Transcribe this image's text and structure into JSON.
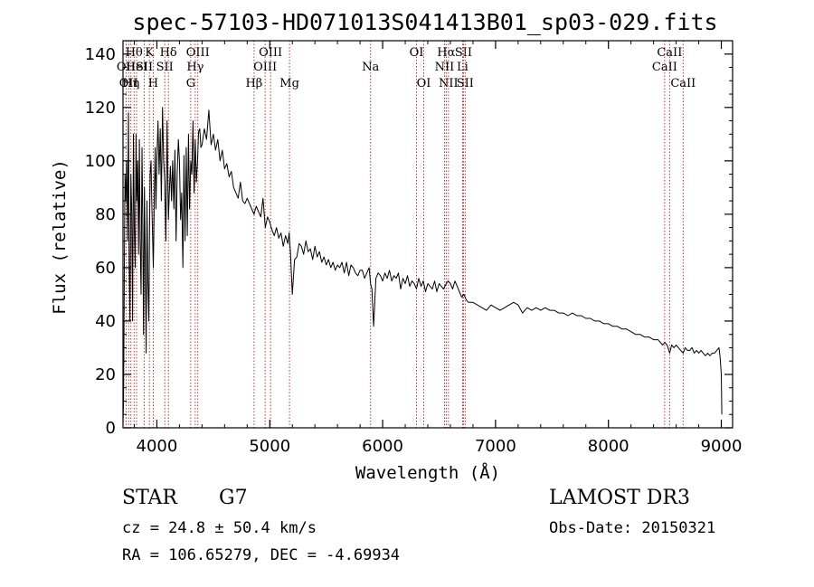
{
  "chart_data": {
    "type": "line",
    "title": "spec-57103-HD071013S041413B01_sp03-029.fits",
    "xlabel": "Wavelength (Å)",
    "ylabel": "Flux (relative)",
    "xlim": [
      3700,
      9100
    ],
    "ylim": [
      0,
      145
    ],
    "xticks": [
      4000,
      5000,
      6000,
      7000,
      8000,
      9000
    ],
    "yticks": [
      0,
      20,
      40,
      60,
      80,
      100,
      120,
      140
    ],
    "series": [
      {
        "name": "flux",
        "x": [
          3700,
          3705,
          3712,
          3718,
          3725,
          3732,
          3740,
          3748,
          3755,
          3762,
          3770,
          3778,
          3785,
          3792,
          3800,
          3808,
          3815,
          3822,
          3830,
          3838,
          3845,
          3852,
          3860,
          3868,
          3875,
          3882,
          3890,
          3898,
          3905,
          3912,
          3920,
          3928,
          3934,
          3940,
          3948,
          3955,
          3962,
          3968,
          3972,
          3978,
          3985,
          3992,
          4000,
          4010,
          4020,
          4030,
          4040,
          4050,
          4060,
          4070,
          4080,
          4090,
          4102,
          4110,
          4120,
          4130,
          4140,
          4150,
          4160,
          4170,
          4180,
          4190,
          4200,
          4210,
          4220,
          4230,
          4240,
          4250,
          4260,
          4270,
          4280,
          4290,
          4300,
          4310,
          4320,
          4330,
          4340,
          4350,
          4360,
          4370,
          4380,
          4390,
          4400,
          4420,
          4440,
          4460,
          4480,
          4500,
          4520,
          4540,
          4560,
          4580,
          4600,
          4620,
          4640,
          4660,
          4680,
          4700,
          4720,
          4740,
          4760,
          4780,
          4800,
          4820,
          4840,
          4861,
          4880,
          4900,
          4920,
          4940,
          4960,
          4980,
          5000,
          5020,
          5040,
          5060,
          5080,
          5100,
          5120,
          5140,
          5160,
          5172,
          5183,
          5200,
          5220,
          5240,
          5260,
          5280,
          5300,
          5320,
          5340,
          5360,
          5380,
          5400,
          5420,
          5440,
          5460,
          5480,
          5500,
          5520,
          5540,
          5560,
          5580,
          5600,
          5620,
          5640,
          5660,
          5680,
          5700,
          5720,
          5740,
          5760,
          5780,
          5800,
          5820,
          5840,
          5860,
          5880,
          5893,
          5905,
          5920,
          5940,
          5960,
          5980,
          6000,
          6020,
          6040,
          6060,
          6080,
          6100,
          6120,
          6140,
          6160,
          6180,
          6200,
          6220,
          6240,
          6260,
          6280,
          6300,
          6320,
          6340,
          6360,
          6380,
          6400,
          6420,
          6440,
          6460,
          6480,
          6500,
          6520,
          6540,
          6563,
          6580,
          6600,
          6620,
          6640,
          6660,
          6680,
          6700,
          6720,
          6740,
          6760,
          6800,
          6840,
          6880,
          6920,
          6960,
          7000,
          7040,
          7080,
          7120,
          7160,
          7200,
          7240,
          7280,
          7320,
          7360,
          7400,
          7440,
          7480,
          7520,
          7560,
          7600,
          7640,
          7680,
          7720,
          7760,
          7800,
          7840,
          7880,
          7920,
          7960,
          8000,
          8040,
          8080,
          8120,
          8160,
          8200,
          8240,
          8280,
          8320,
          8360,
          8400,
          8440,
          8480,
          8498,
          8520,
          8542,
          8560,
          8580,
          8600,
          8620,
          8640,
          8662,
          8680,
          8700,
          8720,
          8740,
          8760,
          8780,
          8800,
          8820,
          8840,
          8860,
          8880,
          8900,
          8920,
          8940,
          8960,
          8980,
          8990,
          9000,
          9005
        ],
        "values": [
          2,
          10,
          60,
          95,
          85,
          100,
          70,
          118,
          60,
          40,
          95,
          80,
          40,
          110,
          75,
          60,
          110,
          85,
          100,
          65,
          108,
          70,
          50,
          105,
          80,
          35,
          90,
          60,
          28,
          85,
          55,
          40,
          70,
          95,
          100,
          85,
          72,
          60,
          68,
          90,
          105,
          82,
          100,
          115,
          95,
          112,
          85,
          120,
          100,
          92,
          70,
          115,
          78,
          88,
          98,
          85,
          100,
          82,
          104,
          70,
          95,
          108,
          100,
          78,
          88,
          60,
          102,
          70,
          105,
          72,
          110,
          82,
          100,
          95,
          115,
          88,
          108,
          92,
          100,
          111,
          112,
          105,
          106,
          112,
          108,
          119,
          106,
          110,
          104,
          108,
          100,
          104,
          97,
          99,
          94,
          96,
          90,
          88,
          86,
          92,
          85,
          84,
          86,
          84,
          82,
          80,
          83,
          81,
          79,
          86,
          75,
          79,
          77,
          74,
          72,
          75,
          71,
          73,
          68,
          72,
          69,
          73,
          66,
          50,
          63,
          64,
          69,
          68,
          65,
          70,
          66,
          67,
          63,
          68,
          64,
          66,
          62,
          64,
          61,
          63,
          60,
          62,
          59,
          61,
          60,
          62,
          58,
          62,
          57,
          61,
          60,
          58,
          57,
          59,
          59,
          56,
          58,
          60,
          54,
          52,
          38,
          56,
          58,
          57,
          55,
          58,
          56,
          59,
          55,
          57,
          56,
          58,
          52,
          56,
          54,
          57,
          53,
          55,
          54,
          52,
          56,
          53,
          55,
          51,
          54,
          53,
          52,
          55,
          51,
          54,
          53,
          52,
          54,
          55,
          54,
          52,
          55,
          53,
          51,
          49,
          50,
          48,
          47,
          47,
          46,
          45,
          44,
          46,
          45,
          44,
          45,
          46,
          47,
          46,
          43,
          45,
          44,
          45,
          44,
          45,
          44,
          44,
          43,
          43,
          42,
          43,
          42,
          42,
          41,
          41,
          40,
          40,
          39,
          39,
          38,
          38,
          37,
          37,
          36,
          35,
          35,
          34,
          34,
          33,
          33,
          31,
          32,
          31,
          28,
          31,
          30,
          31,
          30,
          29,
          28,
          30,
          29,
          29,
          30,
          28,
          29,
          28,
          29,
          28,
          27,
          28,
          27,
          28,
          28,
          29,
          30,
          26,
          20,
          5
        ]
      }
    ],
    "lines": [
      {
        "x": 3727,
        "labels": [
          "OII"
        ],
        "row": [
          2
        ]
      },
      {
        "x": 3750,
        "labels": [
          "OII"
        ],
        "row": [
          3
        ]
      },
      {
        "x": 3770,
        "labels": [
          "Hη"
        ],
        "row": [
          3
        ]
      },
      {
        "x": 3798,
        "labels": [
          "Hθ"
        ],
        "row": [
          1
        ]
      },
      {
        "x": 3820,
        "labels": [
          "HeI"
        ],
        "row": [
          2
        ]
      },
      {
        "x": 3889,
        "labels": [
          "SII"
        ],
        "row": [
          2
        ]
      },
      {
        "x": 3934,
        "labels": [
          "K"
        ],
        "row": [
          1
        ]
      },
      {
        "x": 3968,
        "labels": [
          "H"
        ],
        "row": [
          3
        ]
      },
      {
        "x": 4102,
        "labels": [
          "Hδ"
        ],
        "row": [
          1
        ]
      },
      {
        "x": 4070,
        "labels": [
          "SII"
        ],
        "row": [
          2
        ]
      },
      {
        "x": 4300,
        "labels": [
          "G"
        ],
        "row": [
          3
        ]
      },
      {
        "x": 4340,
        "labels": [
          "Hγ"
        ],
        "row": [
          2
        ]
      },
      {
        "x": 4363,
        "labels": [
          "OIII"
        ],
        "row": [
          1
        ]
      },
      {
        "x": 4861,
        "labels": [
          "Hβ"
        ],
        "row": [
          3
        ]
      },
      {
        "x": 4959,
        "labels": [
          "OIII"
        ],
        "row": [
          2
        ]
      },
      {
        "x": 5007,
        "labels": [
          "OIII"
        ],
        "row": [
          1
        ]
      },
      {
        "x": 5175,
        "labels": [
          "Mg"
        ],
        "row": [
          3
        ]
      },
      {
        "x": 5893,
        "labels": [
          "Na"
        ],
        "row": [
          2
        ]
      },
      {
        "x": 6300,
        "labels": [
          "OI"
        ],
        "row": [
          1
        ]
      },
      {
        "x": 6364,
        "labels": [
          "OI"
        ],
        "row": [
          3
        ]
      },
      {
        "x": 6548,
        "labels": [
          "NII"
        ],
        "row": [
          2
        ]
      },
      {
        "x": 6563,
        "labels": [
          "Hα"
        ],
        "row": [
          1
        ]
      },
      {
        "x": 6583,
        "labels": [
          "NII"
        ],
        "row": [
          3
        ]
      },
      {
        "x": 6708,
        "labels": [
          "Li"
        ],
        "row": [
          2
        ]
      },
      {
        "x": 6716,
        "labels": [
          "SII"
        ],
        "row": [
          1
        ]
      },
      {
        "x": 6731,
        "labels": [
          "SII"
        ],
        "row": [
          3
        ]
      },
      {
        "x": 8498,
        "labels": [
          "CaII"
        ],
        "row": [
          2
        ]
      },
      {
        "x": 8542,
        "labels": [
          "CaII"
        ],
        "row": [
          1
        ]
      },
      {
        "x": 8662,
        "labels": [
          "CaII"
        ],
        "row": [
          3
        ]
      }
    ]
  },
  "info": {
    "class": "STAR",
    "subclass": "G7",
    "survey": "LAMOST DR3",
    "cz": "cz = 24.8 ± 50.4 km/s",
    "obs_date": "Obs-Date: 20150321",
    "coords": "RA = 106.65279, DEC =  -4.69934"
  },
  "colors": {
    "line_marker": "#b22222",
    "spectrum": "#000000"
  }
}
